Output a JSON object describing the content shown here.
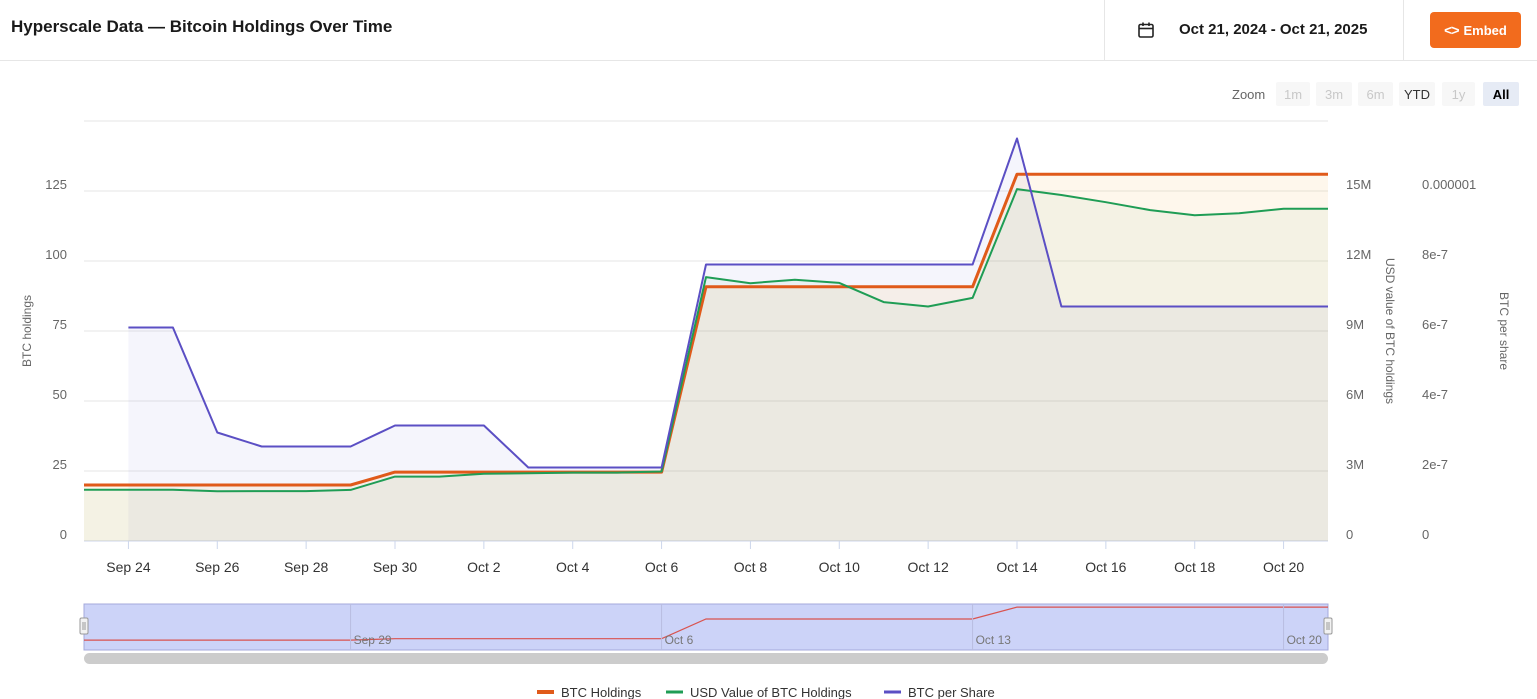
{
  "header": {
    "title": "Hyperscale Data — Bitcoin Holdings Over Time",
    "date_range": "Oct 21, 2024 - Oct 21, 2025",
    "embed_label": "Embed"
  },
  "zoom": {
    "label": "Zoom",
    "buttons": [
      "1m",
      "3m",
      "6m",
      "YTD",
      "1y",
      "All"
    ],
    "enabled": [
      false,
      false,
      false,
      true,
      false,
      true
    ],
    "active": "All"
  },
  "colors": {
    "btc_holdings": "#e05a1a",
    "usd_value": "#1f9d55",
    "btc_per_share": "#5b4fc4"
  },
  "chart_data": {
    "type": "line",
    "x": [
      "Sep 23",
      "Sep 24",
      "Sep 25",
      "Sep 26",
      "Sep 27",
      "Sep 28",
      "Sep 29",
      "Sep 30",
      "Oct 1",
      "Oct 2",
      "Oct 3",
      "Oct 4",
      "Oct 5",
      "Oct 6",
      "Oct 7",
      "Oct 8",
      "Oct 9",
      "Oct 10",
      "Oct 11",
      "Oct 12",
      "Oct 13",
      "Oct 14",
      "Oct 15",
      "Oct 16",
      "Oct 17",
      "Oct 18",
      "Oct 19",
      "Oct 20",
      "Oct 21"
    ],
    "x_tick_labels": [
      "Sep 24",
      "Sep 26",
      "Sep 28",
      "Sep 30",
      "Oct 2",
      "Oct 4",
      "Oct 6",
      "Oct 8",
      "Oct 10",
      "Oct 12",
      "Oct 14",
      "Oct 16",
      "Oct 18",
      "Oct 20"
    ],
    "series": [
      {
        "name": "BTC Holdings",
        "axis": "left",
        "values": [
          20,
          20,
          20,
          20,
          20,
          20,
          20,
          24.6,
          24.6,
          24.6,
          24.6,
          24.6,
          24.6,
          24.6,
          90.8,
          90.8,
          90.8,
          90.8,
          90.8,
          90.8,
          90.8,
          131,
          131,
          131,
          131,
          131,
          131,
          131,
          131
        ]
      },
      {
        "name": "USD Value of BTC Holdings",
        "axis": "middle",
        "values": [
          2200000,
          2200000,
          2200000,
          2130000,
          2140000,
          2140000,
          2190000,
          2760000,
          2760000,
          2880000,
          2900000,
          2930000,
          2930000,
          2980000,
          11310000,
          11050000,
          11200000,
          11060000,
          10240000,
          10050000,
          10420000,
          15080000,
          14830000,
          14520000,
          14180000,
          13960000,
          14050000,
          14240000,
          14240000
        ]
      },
      {
        "name": "BTC per Share",
        "axis": "right",
        "values": [
          null,
          6.1e-07,
          6.1e-07,
          3.1e-07,
          2.7e-07,
          2.7e-07,
          2.7e-07,
          3.3e-07,
          3.3e-07,
          3.3e-07,
          2.1e-07,
          2.1e-07,
          2.1e-07,
          2.1e-07,
          7.9e-07,
          7.9e-07,
          7.9e-07,
          7.9e-07,
          7.9e-07,
          7.9e-07,
          7.9e-07,
          1.15e-06,
          6.7e-07,
          6.7e-07,
          6.7e-07,
          6.7e-07,
          6.7e-07,
          6.7e-07,
          6.7e-07
        ]
      }
    ],
    "y_left": {
      "label": "BTC holdings",
      "ticks": [
        "0",
        "25",
        "50",
        "75",
        "100",
        "125"
      ],
      "ylim": [
        0,
        150
      ]
    },
    "y_middle": {
      "label": "USD value of BTC holdings",
      "ticks": [
        "0",
        "3M",
        "6M",
        "9M",
        "12M",
        "15M"
      ],
      "ylim": [
        0,
        18000000
      ]
    },
    "y_right": {
      "label": "BTC per share",
      "ticks": [
        "0",
        "2e-7",
        "4e-7",
        "6e-7",
        "8e-7",
        "0.000001"
      ],
      "ylim": [
        0,
        1.2e-06
      ]
    },
    "navigator": {
      "labels": [
        "Sep 29",
        "Oct 6",
        "Oct 13",
        "Oct 20"
      ],
      "values": [
        20,
        20,
        20,
        20,
        20,
        20,
        20,
        24.6,
        24.6,
        24.6,
        24.6,
        24.6,
        24.6,
        24.6,
        90.8,
        90.8,
        90.8,
        90.8,
        90.8,
        90.8,
        90.8,
        131,
        131,
        131,
        131,
        131,
        131,
        131,
        131
      ]
    },
    "grid": true,
    "legend_position": "bottom"
  }
}
